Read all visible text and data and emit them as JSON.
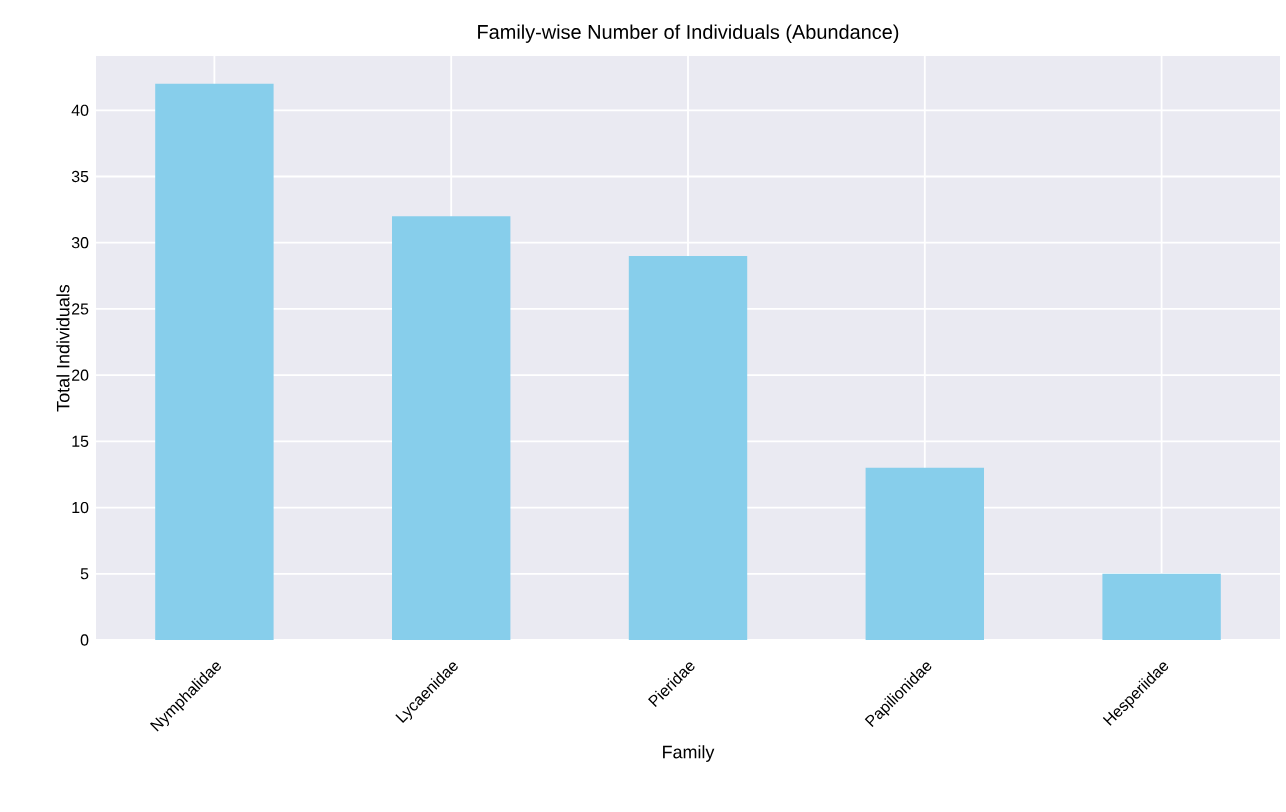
{
  "chart_data": {
    "type": "bar",
    "title": "Family-wise Number of Individuals (Abundance)",
    "xlabel": "Family",
    "ylabel": "Total Individuals",
    "categories": [
      "Nymphalidae",
      "Lycaenidae",
      "Pieridae",
      "Papilionidae",
      "Hesperiidae"
    ],
    "values": [
      42,
      32,
      29,
      13,
      5
    ],
    "color": "#87ceeb",
    "ylim": [
      0,
      44.1
    ],
    "yticks": [
      0,
      5,
      10,
      15,
      20,
      25,
      30,
      35,
      40
    ],
    "grid": true
  }
}
